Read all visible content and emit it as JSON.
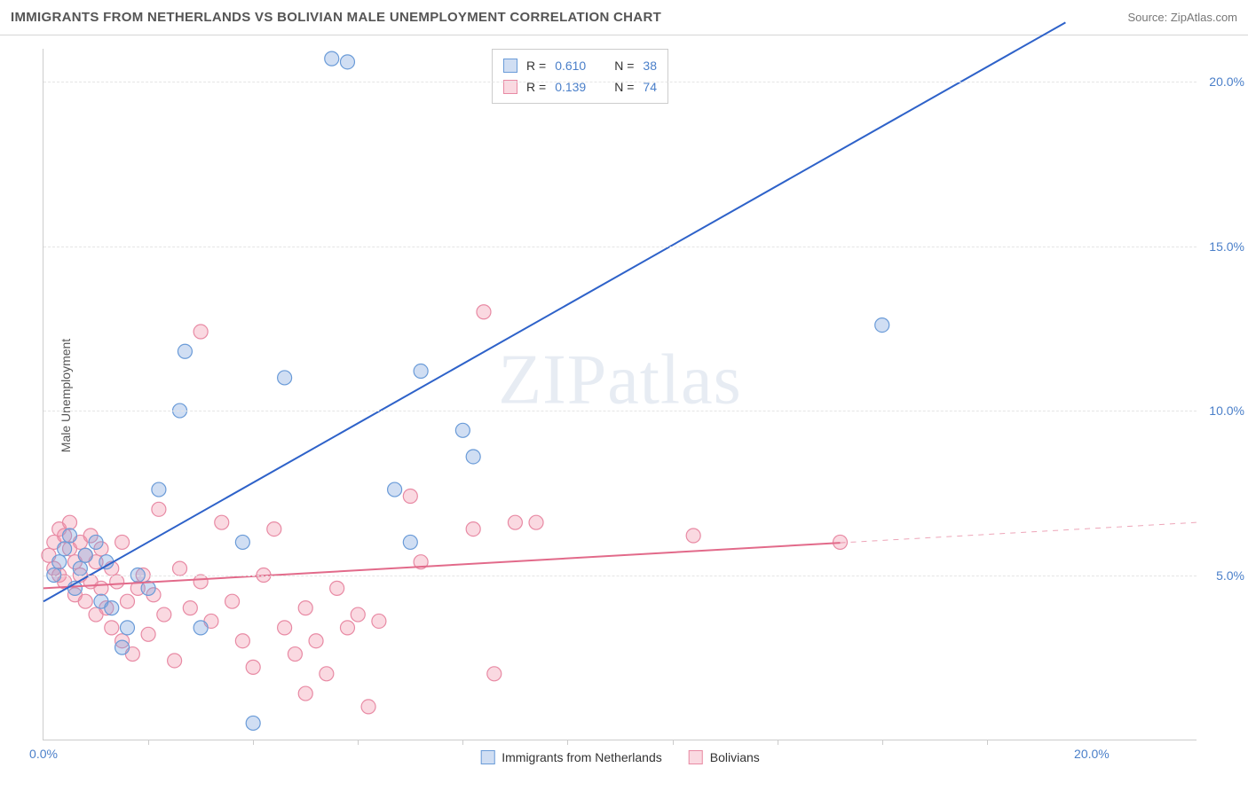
{
  "header": {
    "title": "IMMIGRANTS FROM NETHERLANDS VS BOLIVIAN MALE UNEMPLOYMENT CORRELATION CHART",
    "source_label": "Source: ZipAtlas.com"
  },
  "axes": {
    "y_label": "Male Unemployment",
    "x_min": 0,
    "x_max": 22,
    "y_min": 0,
    "y_max": 21,
    "y_ticks": [
      5,
      10,
      15,
      20
    ],
    "y_tick_labels": [
      "5.0%",
      "10.0%",
      "15.0%",
      "20.0%"
    ],
    "x_ticks_major": [
      0,
      20
    ],
    "x_tick_labels": [
      "0.0%",
      "20.0%"
    ],
    "x_minor_ticks": [
      2,
      4,
      6,
      8,
      10,
      12,
      14,
      16,
      18
    ],
    "grid_color": "#e5e5e5",
    "axis_color": "#cccccc",
    "tick_label_color": "#4a7fc9"
  },
  "watermark": "ZIPatlas",
  "series": {
    "a": {
      "label": "Immigrants from Netherlands",
      "color_fill": "rgba(120,160,220,0.35)",
      "color_stroke": "#6a9bd8",
      "line_color": "#2e62c9",
      "line_width": 2,
      "R": "0.610",
      "N": "38",
      "trend": {
        "x1": 0,
        "y1": 4.2,
        "x2": 19.5,
        "y2": 21.8,
        "x_data_max": 19.5
      },
      "points": [
        [
          0.2,
          5.0
        ],
        [
          0.3,
          5.4
        ],
        [
          0.4,
          5.8
        ],
        [
          0.5,
          6.2
        ],
        [
          0.6,
          4.6
        ],
        [
          0.7,
          5.2
        ],
        [
          0.8,
          5.6
        ],
        [
          1.0,
          6.0
        ],
        [
          1.1,
          4.2
        ],
        [
          1.2,
          5.4
        ],
        [
          1.3,
          4.0
        ],
        [
          1.5,
          2.8
        ],
        [
          1.6,
          3.4
        ],
        [
          1.8,
          5.0
        ],
        [
          2.0,
          4.6
        ],
        [
          2.2,
          7.6
        ],
        [
          2.6,
          10.0
        ],
        [
          2.7,
          11.8
        ],
        [
          3.0,
          3.4
        ],
        [
          3.8,
          6.0
        ],
        [
          4.0,
          0.5
        ],
        [
          4.6,
          11.0
        ],
        [
          5.5,
          20.7
        ],
        [
          5.8,
          20.6
        ],
        [
          6.7,
          7.6
        ],
        [
          7.0,
          6.0
        ],
        [
          7.2,
          11.2
        ],
        [
          8.0,
          9.4
        ],
        [
          8.2,
          8.6
        ],
        [
          16.0,
          12.6
        ]
      ]
    },
    "b": {
      "label": "Bolivians",
      "color_fill": "rgba(240,145,170,0.35)",
      "color_stroke": "#e88aa4",
      "line_color": "#e26a8a",
      "line_width": 2,
      "R": "0.139",
      "N": "74",
      "trend": {
        "x1": 0,
        "y1": 4.6,
        "x2": 22,
        "y2": 6.6,
        "x_data_max": 15.2
      },
      "points": [
        [
          0.1,
          5.6
        ],
        [
          0.2,
          6.0
        ],
        [
          0.2,
          5.2
        ],
        [
          0.3,
          6.4
        ],
        [
          0.3,
          5.0
        ],
        [
          0.4,
          6.2
        ],
        [
          0.4,
          4.8
        ],
        [
          0.5,
          5.8
        ],
        [
          0.5,
          6.6
        ],
        [
          0.6,
          5.4
        ],
        [
          0.6,
          4.4
        ],
        [
          0.7,
          6.0
        ],
        [
          0.7,
          5.0
        ],
        [
          0.8,
          4.2
        ],
        [
          0.8,
          5.6
        ],
        [
          0.9,
          6.2
        ],
        [
          0.9,
          4.8
        ],
        [
          1.0,
          5.4
        ],
        [
          1.0,
          3.8
        ],
        [
          1.1,
          4.6
        ],
        [
          1.1,
          5.8
        ],
        [
          1.2,
          4.0
        ],
        [
          1.3,
          5.2
        ],
        [
          1.3,
          3.4
        ],
        [
          1.4,
          4.8
        ],
        [
          1.5,
          6.0
        ],
        [
          1.5,
          3.0
        ],
        [
          1.6,
          4.2
        ],
        [
          1.7,
          2.6
        ],
        [
          1.8,
          4.6
        ],
        [
          1.9,
          5.0
        ],
        [
          2.0,
          3.2
        ],
        [
          2.1,
          4.4
        ],
        [
          2.2,
          7.0
        ],
        [
          2.3,
          3.8
        ],
        [
          2.5,
          2.4
        ],
        [
          2.6,
          5.2
        ],
        [
          2.8,
          4.0
        ],
        [
          3.0,
          4.8
        ],
        [
          3.0,
          12.4
        ],
        [
          3.2,
          3.6
        ],
        [
          3.4,
          6.6
        ],
        [
          3.6,
          4.2
        ],
        [
          3.8,
          3.0
        ],
        [
          4.0,
          2.2
        ],
        [
          4.2,
          5.0
        ],
        [
          4.4,
          6.4
        ],
        [
          4.6,
          3.4
        ],
        [
          4.8,
          2.6
        ],
        [
          5.0,
          4.0
        ],
        [
          5.0,
          1.4
        ],
        [
          5.2,
          3.0
        ],
        [
          5.4,
          2.0
        ],
        [
          5.6,
          4.6
        ],
        [
          5.8,
          3.4
        ],
        [
          6.0,
          3.8
        ],
        [
          6.2,
          1.0
        ],
        [
          6.4,
          3.6
        ],
        [
          7.0,
          7.4
        ],
        [
          7.2,
          5.4
        ],
        [
          8.2,
          6.4
        ],
        [
          8.4,
          13.0
        ],
        [
          8.6,
          2.0
        ],
        [
          9.0,
          6.6
        ],
        [
          9.4,
          6.6
        ],
        [
          12.4,
          6.2
        ],
        [
          15.2,
          6.0
        ]
      ]
    }
  },
  "legend": {
    "r_label": "R =",
    "n_label": "N ="
  },
  "styling": {
    "marker_radius": 8,
    "marker_stroke_width": 1.2,
    "background": "#ffffff"
  }
}
